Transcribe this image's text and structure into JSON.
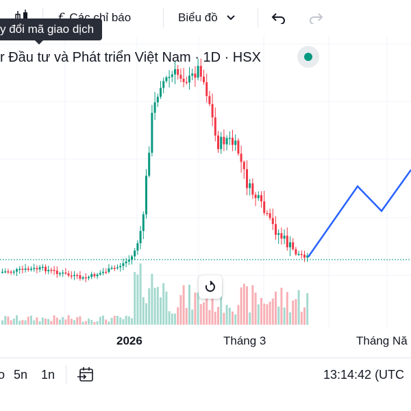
{
  "toolbar": {
    "indicators_label": "Các chỉ báo",
    "chart_type_label": "Biểu đồ"
  },
  "tooltip": {
    "text": "y đổi mã giao dịch"
  },
  "legend": {
    "title": "r Đầu tư và Phát triển Việt Nam · 1D · HSX",
    "status_color": "#089981"
  },
  "time_axis": {
    "labels": [
      "2026",
      "Tháng 3",
      "Tháng Nă"
    ]
  },
  "bottom_bar": {
    "ranges": [
      "o",
      "5n",
      "1n"
    ],
    "clock": "13:14:42 (UTC"
  },
  "colors": {
    "up": "#089981",
    "down": "#f23645",
    "forecast": "#2962ff"
  },
  "icons": [
    "candles-icon",
    "fx-icon",
    "chevron-down-icon",
    "undo-icon",
    "redo-icon",
    "date-range-icon",
    "reset-icon"
  ]
}
